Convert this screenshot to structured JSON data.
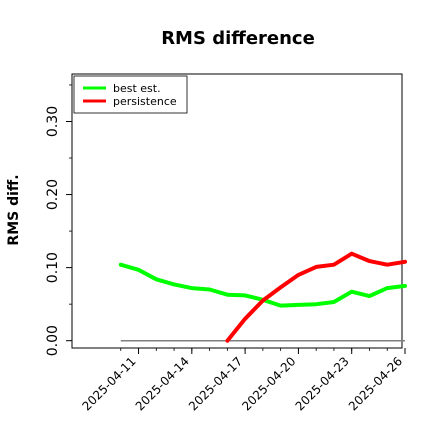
{
  "chart_data": {
    "type": "line",
    "title": "RMS difference",
    "xlabel": "",
    "ylabel": "RMS diff.",
    "ylim": [
      -0.01,
      0.365
    ],
    "xlim": [
      "2025-04-09",
      "2025-04-26"
    ],
    "yticks": [
      0.0,
      0.1,
      0.2,
      0.3
    ],
    "ytick_labels": [
      "0.00",
      "0.10",
      "0.20",
      "0.30"
    ],
    "xticks": [
      "2025-04-11",
      "2025-04-14",
      "2025-04-17",
      "2025-04-20",
      "2025-04-23",
      "2025-04-26"
    ],
    "xtick_labels": [
      "2025-04-11",
      "2025-04-14",
      "2025-04-17",
      "2025-04-20",
      "2025-04-23",
      "2025-04-26"
    ],
    "legend_position": "top-left",
    "grid": false,
    "reference_line": {
      "y": 0.0,
      "from": "2025-04-10",
      "to": "2025-04-26",
      "color": "#7f7f7f"
    },
    "series": [
      {
        "name": "best est.",
        "color": "#00ff00",
        "points": [
          [
            "2025-04-10",
            0.104
          ],
          [
            "2025-04-11",
            0.097
          ],
          [
            "2025-04-12",
            0.084
          ],
          [
            "2025-04-13",
            0.077
          ],
          [
            "2025-04-14",
            0.072
          ],
          [
            "2025-04-15",
            0.07
          ],
          [
            "2025-04-16",
            0.063
          ],
          [
            "2025-04-17",
            0.062
          ],
          [
            "2025-04-18",
            0.056
          ],
          [
            "2025-04-19",
            0.048
          ],
          [
            "2025-04-20",
            0.049
          ],
          [
            "2025-04-21",
            0.05
          ],
          [
            "2025-04-22",
            0.053
          ],
          [
            "2025-04-23",
            0.067
          ],
          [
            "2025-04-24",
            0.061
          ],
          [
            "2025-04-25",
            0.072
          ],
          [
            "2025-04-26",
            0.075
          ]
        ]
      },
      {
        "name": "persistence",
        "color": "#ff0000",
        "points": [
          [
            "2025-04-16",
            0.0
          ],
          [
            "2025-04-17",
            0.03
          ],
          [
            "2025-04-18",
            0.055
          ],
          [
            "2025-04-19",
            0.073
          ],
          [
            "2025-04-20",
            0.09
          ],
          [
            "2025-04-21",
            0.101
          ],
          [
            "2025-04-22",
            0.104
          ],
          [
            "2025-04-23",
            0.119
          ],
          [
            "2025-04-24",
            0.109
          ],
          [
            "2025-04-25",
            0.104
          ],
          [
            "2025-04-26",
            0.108
          ]
        ]
      }
    ]
  }
}
